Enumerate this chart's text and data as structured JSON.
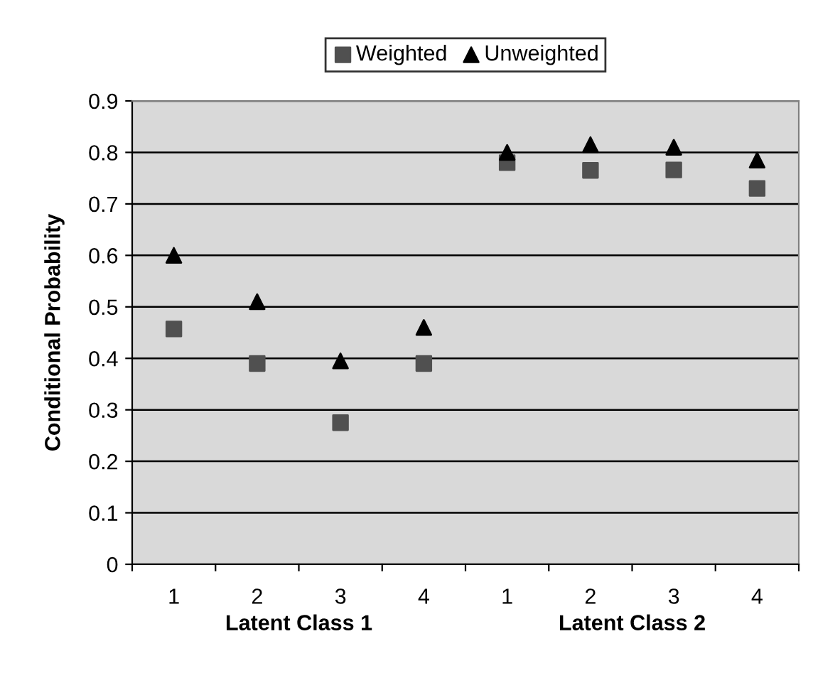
{
  "chart_data": {
    "type": "scatter",
    "ylabel": "Conditional Probability",
    "categories": [
      "1",
      "2",
      "3",
      "4",
      "1",
      "2",
      "3",
      "4"
    ],
    "annotations": [
      "Latent Class 1",
      "Latent Class 2"
    ],
    "series": [
      {
        "name": "Weighted",
        "color": "#505050",
        "marker": "square",
        "values": [
          0.457,
          0.39,
          0.275,
          0.39,
          0.78,
          0.765,
          0.766,
          0.73
        ]
      },
      {
        "name": "Unweighted",
        "color": "#000000",
        "marker": "triangle",
        "values": [
          0.6,
          0.51,
          0.395,
          0.46,
          0.8,
          0.815,
          0.81,
          0.785
        ]
      }
    ],
    "ylim": [
      0,
      0.9
    ],
    "yticks": [
      0,
      0.1,
      0.2,
      0.3,
      0.4,
      0.5,
      0.6,
      0.7,
      0.8,
      0.9
    ],
    "grid": "y",
    "legend": "top"
  }
}
